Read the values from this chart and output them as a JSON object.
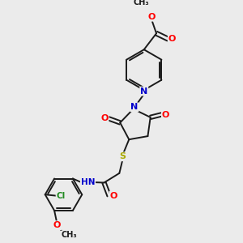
{
  "bg_color": "#ebebeb",
  "bond_color": "#1a1a1a",
  "lw": 1.4,
  "atom_colors": {
    "O": "#ff0000",
    "N": "#0000cc",
    "S": "#aaaa00",
    "Cl": "#228b22",
    "C": "#1a1a1a"
  },
  "xlim": [
    0,
    10
  ],
  "ylim": [
    0,
    10
  ]
}
